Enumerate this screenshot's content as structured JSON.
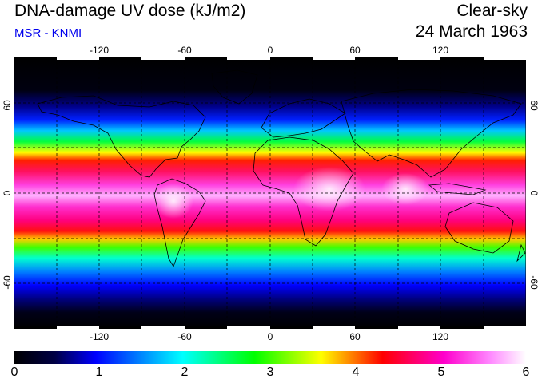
{
  "header": {
    "title": "DNA-damage UV dose (kJ/m2)",
    "subtitle": "MSR - KNMI",
    "condition": "Clear-sky",
    "date": "24 March 1963"
  },
  "map": {
    "projection": "equirectangular",
    "lon_range": [
      -180,
      180
    ],
    "lat_range": [
      -90,
      90
    ],
    "gridlines": "dashed",
    "lon_ticks": [
      "-120",
      "-60",
      "0",
      "60",
      "120"
    ],
    "lat_ticks": [
      "60",
      "0",
      "-60"
    ],
    "coastlines": true
  },
  "colorbar": {
    "labels": [
      "0",
      "1",
      "2",
      "3",
      "4",
      "5",
      "6"
    ],
    "range": [
      0,
      6
    ],
    "colors": [
      "#000000",
      "#000066",
      "#0000ff",
      "#00ffff",
      "#00ff00",
      "#ffff00",
      "#ff0000",
      "#ff00cc",
      "#ff66ff",
      "#ffffff"
    ]
  }
}
